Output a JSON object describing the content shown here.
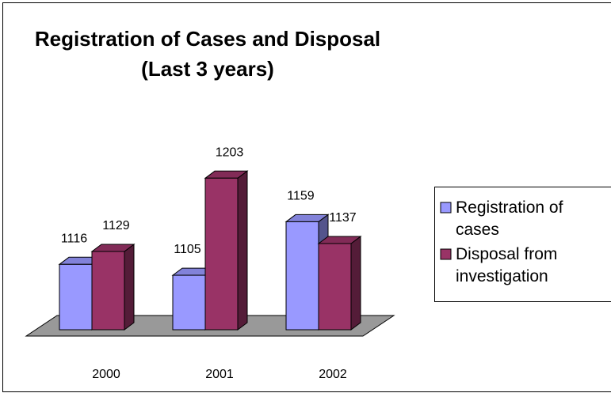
{
  "chart_data": {
    "type": "bar3d",
    "title": [
      "Registration of Cases and Disposal",
      "(Last 3 years)"
    ],
    "categories": [
      "2000",
      "2001",
      "2002"
    ],
    "series": [
      {
        "name": "Registration of cases",
        "color": "#9999ff",
        "values": [
          1116,
          1105,
          1159
        ]
      },
      {
        "name": "Disposal from investigation",
        "color": "#993366",
        "values": [
          1129,
          1203,
          1137
        ]
      }
    ],
    "ylim": [
      1050,
      1220
    ],
    "legend": "right"
  }
}
